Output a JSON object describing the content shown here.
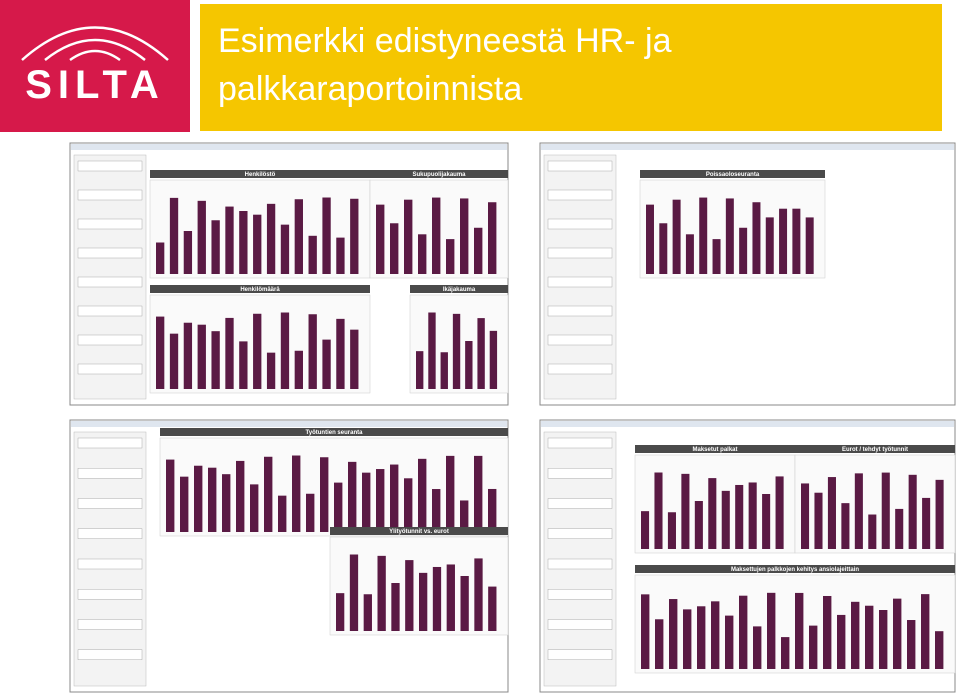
{
  "logo": {
    "text": "SILTA"
  },
  "title": {
    "lines": [
      "Esimerkki edistyneestä HR- ja",
      "palkkaraportoinnista"
    ]
  },
  "screenshots": [
    {
      "panels": [
        "Henkilöstö",
        "Sukupuolijakauma",
        "Henkilömäärä",
        "Ikäjakauma"
      ]
    },
    {
      "panels": [
        "Poissaoloseuranta"
      ]
    },
    {
      "panels": [
        "Työtuntien seuranta",
        "Ylityötunnit vs. eurot"
      ]
    },
    {
      "panels": [
        "Maksetut palkat",
        "Eurot / tehdyt työtunnit",
        "Maksettujen palkkojen kehitys ansiolajeittain"
      ]
    }
  ]
}
